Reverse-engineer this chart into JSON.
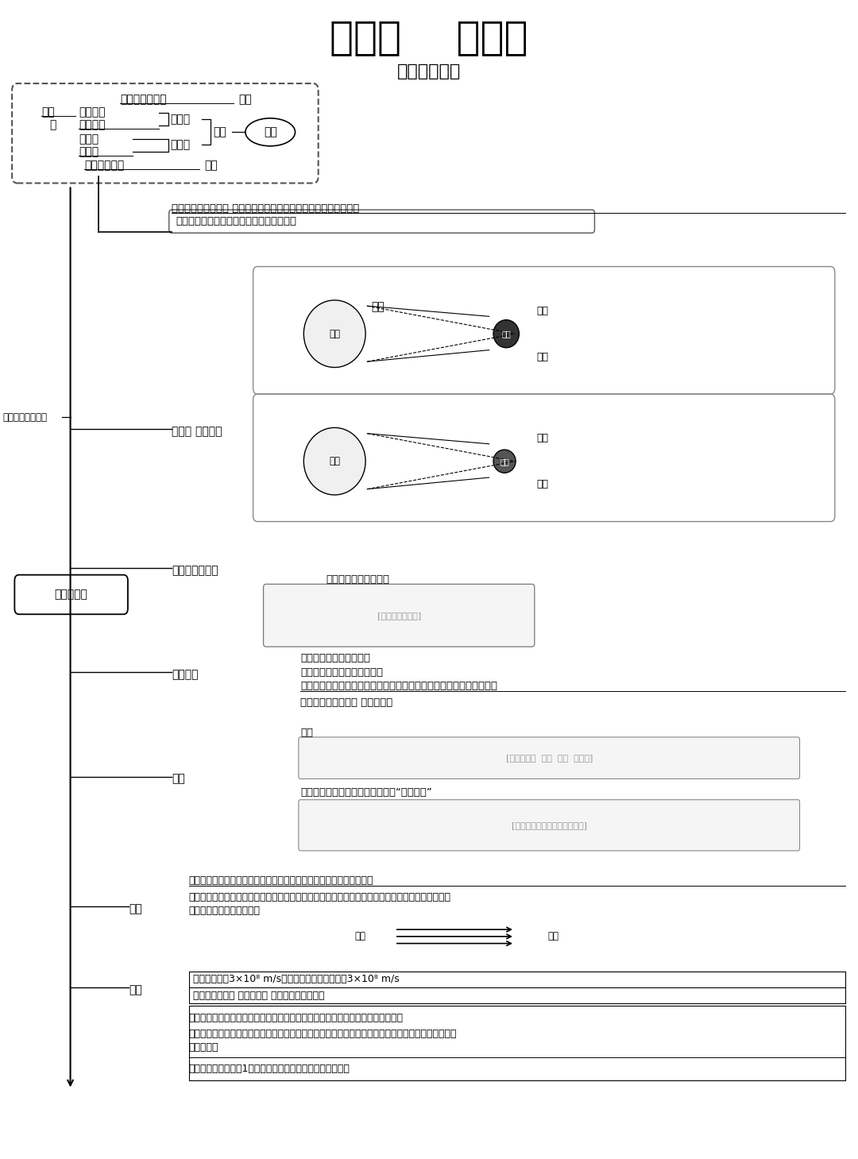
{
  "title": "第四章    光现象",
  "subtitle": "光的直线传播",
  "bg_color": "#ffffff",
  "text_color": "#000000",
  "title_fontsize": 36,
  "subtitle_fontsize": 18,
  "body_fontsize": 11,
  "note_zhunzhi": "射击时保证缺口、准星、射击目标“二点一线”"
}
